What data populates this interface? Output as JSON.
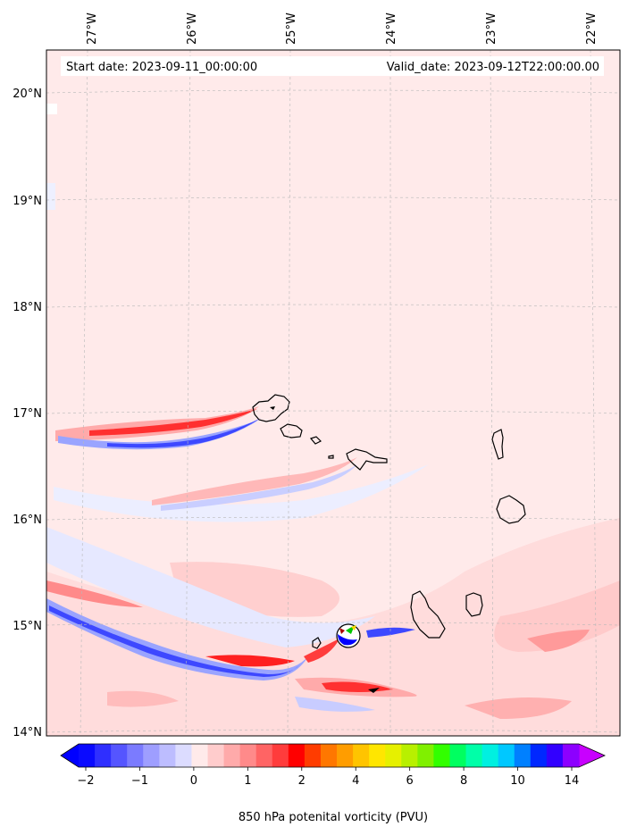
{
  "header": {
    "start_text": "Start date: 2023-09-11_00:00:00",
    "valid_text": "Valid_date: 2023-09-12T22:00:00.00"
  },
  "axes": {
    "longitude_labels": [
      "27°W",
      "26°W",
      "25°W",
      "24°W",
      "23°W",
      "22°W"
    ],
    "latitude_labels": [
      "20°N",
      "19°N",
      "18°N",
      "17°N",
      "16°N",
      "15°N",
      "14°N"
    ]
  },
  "colorbar": {
    "title": "850 hPa potenital vorticity (PVU)",
    "tick_labels": [
      "−2",
      "−1",
      "0",
      "1",
      "2",
      "4",
      "6",
      "8",
      "10",
      "14"
    ],
    "colors": [
      "#0a0aff",
      "#2f2fff",
      "#5555ff",
      "#7b7bff",
      "#9e9eff",
      "#bdbdff",
      "#dcdcff",
      "#ffeaea",
      "#ffcccc",
      "#ffaaaa",
      "#ff8a8a",
      "#ff6464",
      "#ff3c3c",
      "#ff0000",
      "#ff3c00",
      "#ff7700",
      "#ff9d00",
      "#ffc400",
      "#ffe600",
      "#e6f000",
      "#b8f000",
      "#80f000",
      "#32ff00",
      "#00ff60",
      "#00ffa8",
      "#00f0e0",
      "#00c8ff",
      "#0080ff",
      "#0028ff",
      "#3200ff",
      "#8c00ff"
    ],
    "under_color": "#0000ff",
    "over_color": "#c800ff"
  },
  "map_colors": {
    "background_field": "#ffeaea",
    "light_blue": "#dde2ff",
    "mid_blue": "#9aa4ff",
    "strong_blue": "#3d48ff",
    "light_red": "#ffcfcf",
    "mid_red": "#ff9a9a",
    "strong_red": "#ff2020",
    "coastline": "#000000"
  }
}
